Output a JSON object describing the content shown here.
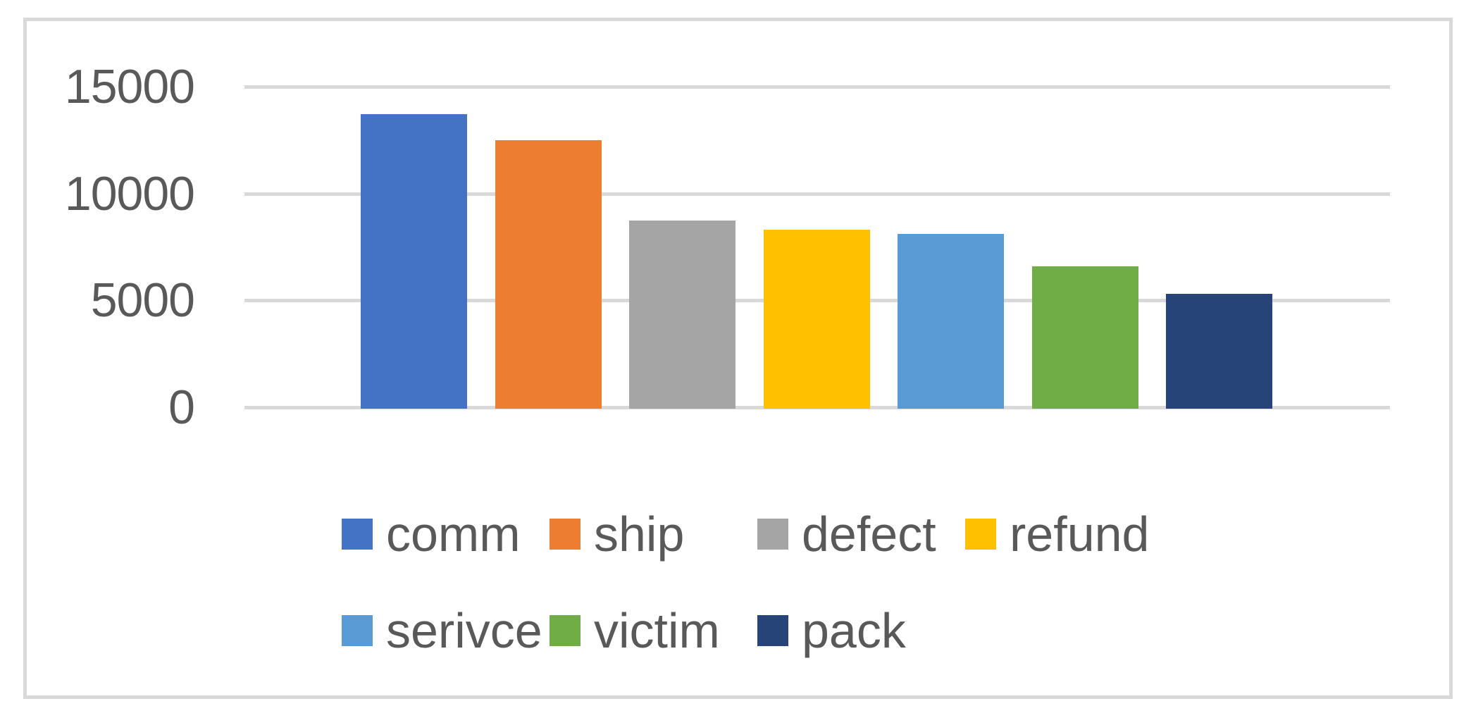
{
  "chart_data": {
    "type": "bar",
    "title": "",
    "xlabel": "",
    "ylabel": "",
    "categories": [
      ""
    ],
    "series": [
      {
        "name": "comm",
        "value": 13700,
        "color": "#4472C4"
      },
      {
        "name": "ship",
        "value": 12500,
        "color": "#ED7D31"
      },
      {
        "name": "defect",
        "value": 8750,
        "color": "#A5A5A5"
      },
      {
        "name": "refund",
        "value": 8300,
        "color": "#FFC000"
      },
      {
        "name": "serivce",
        "value": 8100,
        "color": "#5B9BD5"
      },
      {
        "name": "victim",
        "value": 6600,
        "color": "#70AD47"
      },
      {
        "name": "pack",
        "value": 5300,
        "color": "#264478"
      }
    ],
    "ylim": [
      0,
      15000
    ],
    "yticks": [
      {
        "label": "15000",
        "value": 15000
      },
      {
        "label": "10000",
        "value": 10000
      },
      {
        "label": "5000",
        "value": 5000
      },
      {
        "label": "0",
        "value": 0
      }
    ],
    "grid": true,
    "legend_position": "bottom",
    "legend_rows": [
      [
        "comm",
        "ship",
        "defect",
        "refund"
      ],
      [
        "serivce",
        "victim",
        "pack"
      ]
    ]
  },
  "colors": {
    "gridline": "#D9D9D9",
    "frame_border": "#D9D9D9",
    "axis_text": "#595959",
    "legend_text": "#595959",
    "background": "#FFFFFF"
  }
}
